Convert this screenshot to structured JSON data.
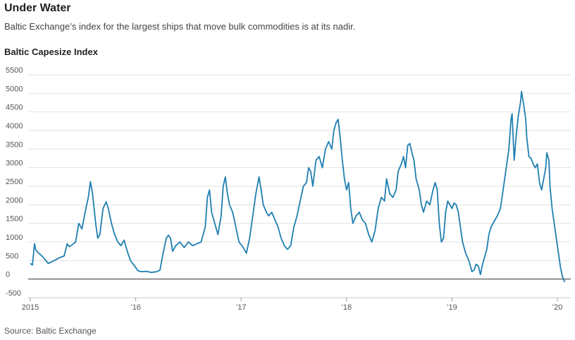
{
  "header": {
    "title": "Under Water",
    "subtitle": "Baltic Exchange’s index for the largest ships that move bulk commodities is at its nadir.",
    "chart_label": "Baltic Capesize Index"
  },
  "footer": {
    "source": "Source: Baltic Exchange"
  },
  "colors": {
    "line": "#1f7fb0",
    "grid": "#e2e2e2",
    "zero": "#333333"
  },
  "chart_data": {
    "type": "line",
    "title": "Baltic Capesize Index",
    "xlabel": "",
    "ylabel": "",
    "ylim": [
      -500,
      5500
    ],
    "xlim": [
      2015.0,
      2020.15
    ],
    "y_ticks": [
      5500,
      5000,
      4500,
      4000,
      3500,
      3000,
      2500,
      2000,
      1500,
      1000,
      500,
      0,
      -500
    ],
    "x_ticks": [
      {
        "value": 2015,
        "label": "2015"
      },
      {
        "value": 2016,
        "label": "’16"
      },
      {
        "value": 2017,
        "label": "’17"
      },
      {
        "value": 2018,
        "label": "’18"
      },
      {
        "value": 2019,
        "label": "’19"
      },
      {
        "value": 2020,
        "label": "’20"
      }
    ],
    "series": [
      {
        "name": "Baltic Capesize Index",
        "points": [
          [
            2015.0,
            420
          ],
          [
            2015.02,
            380
          ],
          [
            2015.04,
            950
          ],
          [
            2015.05,
            800
          ],
          [
            2015.07,
            720
          ],
          [
            2015.1,
            650
          ],
          [
            2015.13,
            560
          ],
          [
            2015.17,
            420
          ],
          [
            2015.2,
            460
          ],
          [
            2015.24,
            520
          ],
          [
            2015.28,
            580
          ],
          [
            2015.32,
            620
          ],
          [
            2015.35,
            950
          ],
          [
            2015.37,
            870
          ],
          [
            2015.4,
            930
          ],
          [
            2015.43,
            1000
          ],
          [
            2015.46,
            1500
          ],
          [
            2015.49,
            1350
          ],
          [
            2015.52,
            1800
          ],
          [
            2015.55,
            2200
          ],
          [
            2015.57,
            2620
          ],
          [
            2015.59,
            2300
          ],
          [
            2015.62,
            1500
          ],
          [
            2015.64,
            1100
          ],
          [
            2015.66,
            1200
          ],
          [
            2015.69,
            1900
          ],
          [
            2015.72,
            2080
          ],
          [
            2015.74,
            1900
          ],
          [
            2015.77,
            1500
          ],
          [
            2015.8,
            1200
          ],
          [
            2015.83,
            1000
          ],
          [
            2015.86,
            900
          ],
          [
            2015.89,
            1050
          ],
          [
            2015.92,
            750
          ],
          [
            2015.95,
            500
          ],
          [
            2015.99,
            350
          ],
          [
            2016.02,
            230
          ],
          [
            2016.05,
            200
          ],
          [
            2016.1,
            210
          ],
          [
            2016.15,
            180
          ],
          [
            2016.2,
            200
          ],
          [
            2016.23,
            240
          ],
          [
            2016.26,
            700
          ],
          [
            2016.29,
            1100
          ],
          [
            2016.31,
            1180
          ],
          [
            2016.33,
            1100
          ],
          [
            2016.35,
            750
          ],
          [
            2016.38,
            900
          ],
          [
            2016.42,
            1000
          ],
          [
            2016.46,
            850
          ],
          [
            2016.5,
            1000
          ],
          [
            2016.54,
            900
          ],
          [
            2016.58,
            950
          ],
          [
            2016.62,
            1000
          ],
          [
            2016.66,
            1400
          ],
          [
            2016.68,
            2200
          ],
          [
            2016.7,
            2400
          ],
          [
            2016.72,
            1800
          ],
          [
            2016.75,
            1500
          ],
          [
            2016.78,
            1200
          ],
          [
            2016.81,
            1700
          ],
          [
            2016.83,
            2500
          ],
          [
            2016.85,
            2750
          ],
          [
            2016.87,
            2300
          ],
          [
            2016.89,
            2000
          ],
          [
            2016.92,
            1800
          ],
          [
            2016.95,
            1400
          ],
          [
            2016.98,
            1000
          ],
          [
            2017.02,
            850
          ],
          [
            2017.05,
            700
          ],
          [
            2017.08,
            1100
          ],
          [
            2017.11,
            1700
          ],
          [
            2017.14,
            2300
          ],
          [
            2017.17,
            2750
          ],
          [
            2017.19,
            2400
          ],
          [
            2017.21,
            2000
          ],
          [
            2017.24,
            1800
          ],
          [
            2017.26,
            1700
          ],
          [
            2017.29,
            1800
          ],
          [
            2017.32,
            1600
          ],
          [
            2017.35,
            1400
          ],
          [
            2017.38,
            1100
          ],
          [
            2017.41,
            900
          ],
          [
            2017.44,
            800
          ],
          [
            2017.47,
            900
          ],
          [
            2017.5,
            1400
          ],
          [
            2017.53,
            1700
          ],
          [
            2017.56,
            2100
          ],
          [
            2017.59,
            2500
          ],
          [
            2017.62,
            2600
          ],
          [
            2017.64,
            3000
          ],
          [
            2017.66,
            2900
          ],
          [
            2017.68,
            2500
          ],
          [
            2017.71,
            3200
          ],
          [
            2017.74,
            3300
          ],
          [
            2017.77,
            3000
          ],
          [
            2017.8,
            3500
          ],
          [
            2017.83,
            3700
          ],
          [
            2017.86,
            3500
          ],
          [
            2017.88,
            4000
          ],
          [
            2017.9,
            4200
          ],
          [
            2017.92,
            4300
          ],
          [
            2017.94,
            3800
          ],
          [
            2017.96,
            3200
          ],
          [
            2017.98,
            2700
          ],
          [
            2018.0,
            2400
          ],
          [
            2018.02,
            2600
          ],
          [
            2018.04,
            1900
          ],
          [
            2018.06,
            1500
          ],
          [
            2018.09,
            1700
          ],
          [
            2018.12,
            1800
          ],
          [
            2018.15,
            1600
          ],
          [
            2018.18,
            1500
          ],
          [
            2018.21,
            1200
          ],
          [
            2018.24,
            1000
          ],
          [
            2018.27,
            1300
          ],
          [
            2018.3,
            1900
          ],
          [
            2018.33,
            2200
          ],
          [
            2018.36,
            2100
          ],
          [
            2018.38,
            2700
          ],
          [
            2018.41,
            2300
          ],
          [
            2018.44,
            2200
          ],
          [
            2018.47,
            2400
          ],
          [
            2018.49,
            2900
          ],
          [
            2018.52,
            3100
          ],
          [
            2018.54,
            3300
          ],
          [
            2018.56,
            3000
          ],
          [
            2018.58,
            3600
          ],
          [
            2018.6,
            3650
          ],
          [
            2018.62,
            3400
          ],
          [
            2018.64,
            3200
          ],
          [
            2018.66,
            2700
          ],
          [
            2018.69,
            2400
          ],
          [
            2018.71,
            2000
          ],
          [
            2018.73,
            1800
          ],
          [
            2018.76,
            2100
          ],
          [
            2018.79,
            2000
          ],
          [
            2018.82,
            2400
          ],
          [
            2018.84,
            2600
          ],
          [
            2018.86,
            2400
          ],
          [
            2018.88,
            1500
          ],
          [
            2018.9,
            1000
          ],
          [
            2018.92,
            1100
          ],
          [
            2018.94,
            1800
          ],
          [
            2018.96,
            2100
          ],
          [
            2018.98,
            2000
          ],
          [
            2019.0,
            1900
          ],
          [
            2019.02,
            2050
          ],
          [
            2019.04,
            2000
          ],
          [
            2019.06,
            1800
          ],
          [
            2019.08,
            1400
          ],
          [
            2019.1,
            1000
          ],
          [
            2019.13,
            700
          ],
          [
            2019.16,
            500
          ],
          [
            2019.19,
            200
          ],
          [
            2019.21,
            250
          ],
          [
            2019.23,
            400
          ],
          [
            2019.25,
            350
          ],
          [
            2019.27,
            120
          ],
          [
            2019.29,
            400
          ],
          [
            2019.31,
            600
          ],
          [
            2019.33,
            800
          ],
          [
            2019.35,
            1200
          ],
          [
            2019.37,
            1400
          ],
          [
            2019.4,
            1550
          ],
          [
            2019.43,
            1700
          ],
          [
            2019.46,
            1900
          ],
          [
            2019.48,
            2300
          ],
          [
            2019.5,
            2700
          ],
          [
            2019.52,
            3100
          ],
          [
            2019.54,
            3500
          ],
          [
            2019.56,
            4300
          ],
          [
            2019.57,
            4450
          ],
          [
            2019.59,
            3200
          ],
          [
            2019.61,
            3900
          ],
          [
            2019.63,
            4400
          ],
          [
            2019.65,
            4750
          ],
          [
            2019.66,
            5050
          ],
          [
            2019.68,
            4700
          ],
          [
            2019.7,
            4300
          ],
          [
            2019.71,
            3800
          ],
          [
            2019.73,
            3300
          ],
          [
            2019.75,
            3250
          ],
          [
            2019.77,
            3100
          ],
          [
            2019.79,
            3000
          ],
          [
            2019.81,
            3100
          ],
          [
            2019.83,
            2600
          ],
          [
            2019.85,
            2400
          ],
          [
            2019.87,
            2700
          ],
          [
            2019.89,
            3000
          ],
          [
            2019.9,
            3400
          ],
          [
            2019.92,
            3200
          ],
          [
            2019.93,
            2500
          ],
          [
            2019.95,
            1900
          ],
          [
            2019.97,
            1500
          ],
          [
            2019.99,
            1100
          ],
          [
            2020.01,
            700
          ],
          [
            2020.03,
            300
          ],
          [
            2020.05,
            50
          ],
          [
            2020.07,
            -80
          ]
        ]
      }
    ]
  }
}
